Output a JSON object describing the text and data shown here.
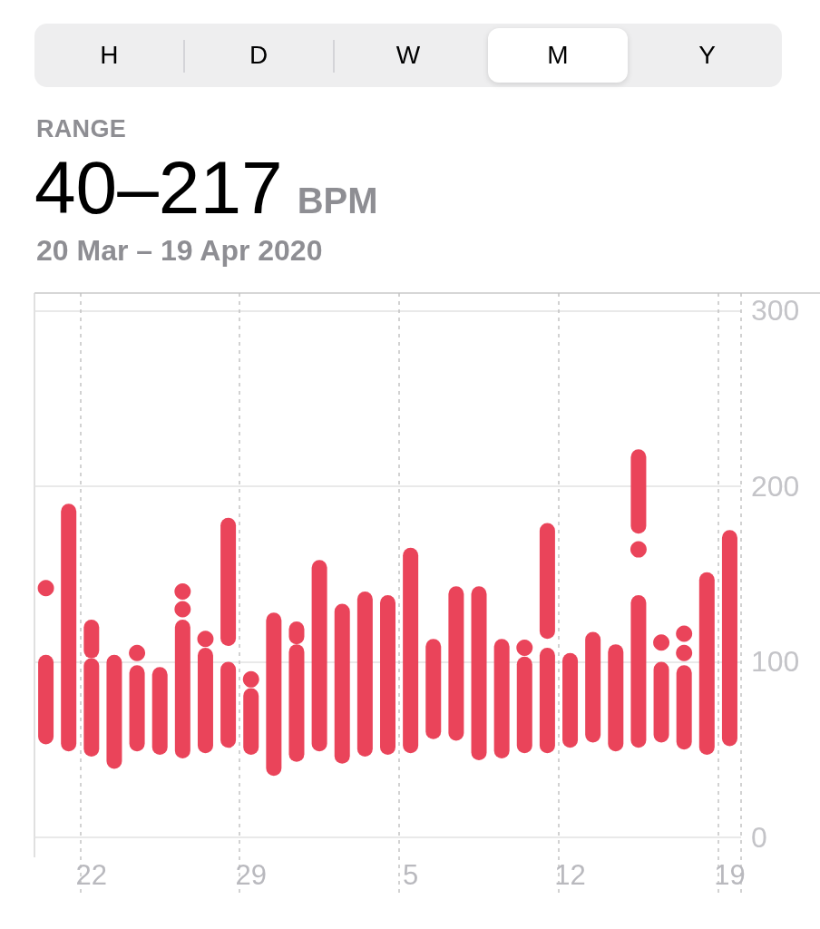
{
  "chart_data": {
    "type": "bar",
    "title": "RANGE",
    "subtitle": "20 Mar – 19 Apr 2020",
    "annotations": [
      "H",
      "D",
      "W",
      "M",
      "Y",
      "40–217",
      "BPM"
    ],
    "categories": [
      null,
      null,
      "22",
      null,
      null,
      null,
      null,
      null,
      null,
      "29",
      null,
      null,
      null,
      null,
      null,
      null,
      "5",
      null,
      null,
      null,
      null,
      null,
      null,
      "12",
      null,
      null,
      null,
      null,
      null,
      null,
      "19"
    ],
    "series": [
      {
        "color": "#ea445a",
        "base": [
          53,
          49,
          46,
          39,
          49,
          47,
          45,
          48,
          51,
          47,
          35,
          43,
          49,
          42,
          46,
          47,
          48,
          56,
          55,
          44,
          45,
          48,
          48,
          51,
          54,
          49,
          51,
          54,
          50,
          47,
          52
        ],
        "values": [
          51,
          141,
          56,
          65,
          49,
          50,
          79,
          60,
          49,
          38,
          93,
          67,
          109,
          91,
          94,
          91,
          117,
          57,
          88,
          99,
          68,
          55,
          60,
          54,
          63,
          61,
          87,
          46,
          48,
          104,
          123
        ]
      },
      {
        "color": "#ea445a",
        "base": [
          null,
          null,
          102,
          null,
          null,
          null,
          null,
          null,
          109,
          null,
          null,
          110,
          null,
          null,
          null,
          null,
          null,
          null,
          null,
          null,
          null,
          null,
          113,
          null,
          null,
          null,
          173,
          null,
          null,
          null,
          null
        ],
        "values": [
          null,
          null,
          22,
          null,
          null,
          null,
          null,
          null,
          73,
          null,
          null,
          13,
          null,
          null,
          null,
          null,
          null,
          null,
          null,
          null,
          null,
          null,
          66,
          null,
          null,
          null,
          48,
          null,
          null,
          null,
          null
        ]
      },
      {
        "type": "scatter",
        "color": "#ea445a",
        "values": [
          142,
          null,
          null,
          null,
          105,
          null,
          130,
          113,
          null,
          90,
          null,
          null,
          null,
          null,
          null,
          null,
          null,
          null,
          null,
          null,
          null,
          108,
          null,
          null,
          null,
          null,
          164,
          111,
          105,
          null,
          null
        ]
      },
      {
        "type": "scatter",
        "color": "#ea445a",
        "values": [
          null,
          null,
          null,
          null,
          null,
          null,
          140,
          null,
          null,
          null,
          null,
          null,
          null,
          null,
          null,
          null,
          null,
          null,
          null,
          null,
          null,
          null,
          null,
          null,
          null,
          null,
          null,
          null,
          116,
          null,
          null
        ]
      }
    ],
    "ylim": [
      -32,
      310
    ],
    "yticks": [
      0,
      100,
      200,
      300
    ],
    "marker": "circle",
    "grid": true
  }
}
